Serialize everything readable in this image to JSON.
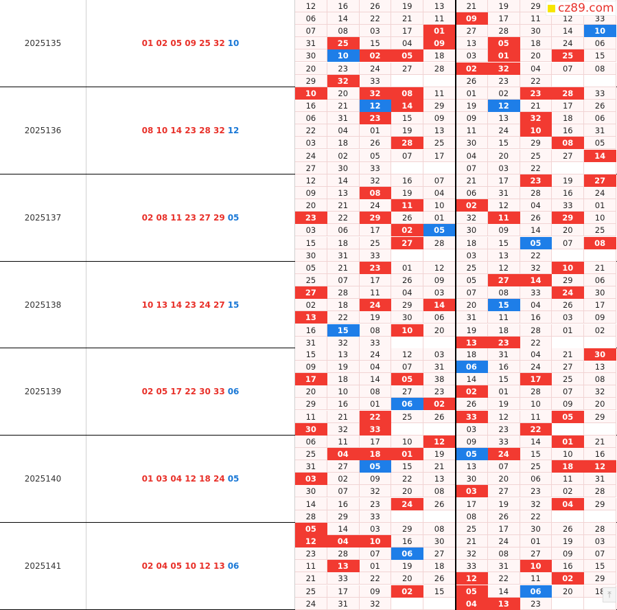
{
  "brand": {
    "logo_text": "cz89.com"
  },
  "scroll_top_glyph": "⤒",
  "rows": [
    {
      "issue": "2025135",
      "red": "01 02 05 09 25 32",
      "blue": "10",
      "left": [
        [
          "12",
          "16",
          "26",
          "19",
          "13"
        ],
        [
          "06",
          "14",
          "22",
          "21",
          "11"
        ],
        [
          "07",
          "08",
          "03",
          "17",
          "01"
        ],
        [
          "31",
          "25",
          "15",
          "04",
          "09"
        ],
        [
          "30",
          "10",
          "02",
          "05",
          "18"
        ],
        [
          "20",
          "23",
          "24",
          "27",
          "28"
        ],
        [
          "29",
          "32",
          "33",
          "",
          ""
        ]
      ],
      "right": [
        [
          "21",
          "19",
          "29",
          "",
          ""
        ],
        [
          "09",
          "17",
          "11",
          "12",
          "33"
        ],
        [
          "27",
          "28",
          "30",
          "14",
          "10"
        ],
        [
          "13",
          "05",
          "18",
          "24",
          "06"
        ],
        [
          "03",
          "01",
          "20",
          "25",
          "15"
        ],
        [
          "02",
          "32",
          "04",
          "07",
          "08"
        ],
        [
          "26",
          "23",
          "22",
          "",
          ""
        ]
      ]
    },
    {
      "issue": "2025136",
      "red": "08 10 14 23 28 32",
      "blue": "12",
      "left": [
        [
          "10",
          "20",
          "32",
          "08",
          "11"
        ],
        [
          "16",
          "21",
          "12",
          "14",
          "29"
        ],
        [
          "06",
          "31",
          "23",
          "15",
          "09"
        ],
        [
          "22",
          "04",
          "01",
          "19",
          "13"
        ],
        [
          "03",
          "18",
          "26",
          "28",
          "25"
        ],
        [
          "24",
          "02",
          "05",
          "07",
          "17"
        ],
        [
          "27",
          "30",
          "33",
          "",
          ""
        ]
      ],
      "right": [
        [
          "01",
          "02",
          "23",
          "28",
          "33"
        ],
        [
          "19",
          "12",
          "21",
          "17",
          "26"
        ],
        [
          "09",
          "13",
          "32",
          "18",
          "06"
        ],
        [
          "11",
          "24",
          "10",
          "16",
          "31"
        ],
        [
          "30",
          "15",
          "29",
          "08",
          "05"
        ],
        [
          "04",
          "20",
          "25",
          "27",
          "14"
        ],
        [
          "07",
          "03",
          "22",
          "",
          ""
        ]
      ]
    },
    {
      "issue": "2025137",
      "red": "02 08 11 23 27 29",
      "blue": "05",
      "left": [
        [
          "12",
          "14",
          "32",
          "16",
          "07"
        ],
        [
          "09",
          "13",
          "08",
          "19",
          "04"
        ],
        [
          "20",
          "21",
          "24",
          "11",
          "10"
        ],
        [
          "23",
          "22",
          "29",
          "26",
          "01"
        ],
        [
          "03",
          "06",
          "17",
          "02",
          "05"
        ],
        [
          "15",
          "18",
          "25",
          "27",
          "28"
        ],
        [
          "30",
          "31",
          "33",
          "",
          ""
        ]
      ],
      "right": [
        [
          "21",
          "17",
          "23",
          "19",
          "27"
        ],
        [
          "06",
          "31",
          "28",
          "16",
          "24"
        ],
        [
          "02",
          "12",
          "04",
          "33",
          "01"
        ],
        [
          "32",
          "11",
          "26",
          "29",
          "10"
        ],
        [
          "30",
          "09",
          "14",
          "20",
          "25"
        ],
        [
          "18",
          "15",
          "05",
          "07",
          "08"
        ],
        [
          "03",
          "13",
          "22",
          "",
          ""
        ]
      ]
    },
    {
      "issue": "2025138",
      "red": "10 13 14 23 24 27",
      "blue": "15",
      "left": [
        [
          "05",
          "21",
          "23",
          "01",
          "12"
        ],
        [
          "25",
          "07",
          "17",
          "26",
          "09"
        ],
        [
          "27",
          "28",
          "11",
          "04",
          "03"
        ],
        [
          "02",
          "18",
          "24",
          "29",
          "14"
        ],
        [
          "13",
          "22",
          "19",
          "30",
          "06"
        ],
        [
          "16",
          "15",
          "08",
          "10",
          "20"
        ],
        [
          "31",
          "32",
          "33",
          "",
          ""
        ]
      ],
      "right": [
        [
          "25",
          "12",
          "32",
          "10",
          "21"
        ],
        [
          "05",
          "27",
          "14",
          "29",
          "06"
        ],
        [
          "07",
          "08",
          "33",
          "24",
          "30"
        ],
        [
          "20",
          "15",
          "04",
          "26",
          "17"
        ],
        [
          "31",
          "11",
          "16",
          "03",
          "09"
        ],
        [
          "19",
          "18",
          "28",
          "01",
          "02"
        ],
        [
          "13",
          "23",
          "22",
          "",
          ""
        ]
      ]
    },
    {
      "issue": "2025139",
      "red": "02 05 17 22 30 33",
      "blue": "06",
      "left": [
        [
          "15",
          "13",
          "24",
          "12",
          "03"
        ],
        [
          "09",
          "19",
          "04",
          "07",
          "31"
        ],
        [
          "17",
          "18",
          "14",
          "05",
          "38"
        ],
        [
          "20",
          "10",
          "08",
          "27",
          "23"
        ],
        [
          "29",
          "16",
          "01",
          "06",
          "02"
        ],
        [
          "11",
          "21",
          "22",
          "25",
          "26"
        ],
        [
          "30",
          "32",
          "33",
          "",
          ""
        ]
      ],
      "right": [
        [
          "18",
          "31",
          "04",
          "21",
          "30"
        ],
        [
          "06",
          "16",
          "24",
          "27",
          "13"
        ],
        [
          "14",
          "15",
          "17",
          "25",
          "08"
        ],
        [
          "02",
          "01",
          "28",
          "07",
          "32"
        ],
        [
          "26",
          "19",
          "10",
          "09",
          "20"
        ],
        [
          "33",
          "12",
          "11",
          "05",
          "29"
        ],
        [
          "03",
          "23",
          "22",
          "",
          ""
        ]
      ]
    },
    {
      "issue": "2025140",
      "red": "01 03 04 12 18 24",
      "blue": "05",
      "left": [
        [
          "06",
          "11",
          "17",
          "10",
          "12"
        ],
        [
          "25",
          "04",
          "18",
          "01",
          "19"
        ],
        [
          "31",
          "27",
          "05",
          "15",
          "21"
        ],
        [
          "03",
          "02",
          "09",
          "22",
          "13"
        ],
        [
          "30",
          "07",
          "32",
          "20",
          "08"
        ],
        [
          "14",
          "16",
          "23",
          "24",
          "26"
        ],
        [
          "28",
          "29",
          "33",
          "",
          ""
        ]
      ],
      "right": [
        [
          "09",
          "33",
          "14",
          "01",
          "21"
        ],
        [
          "05",
          "24",
          "15",
          "10",
          "16"
        ],
        [
          "13",
          "07",
          "25",
          "18",
          "12"
        ],
        [
          "30",
          "20",
          "06",
          "11",
          "31"
        ],
        [
          "03",
          "27",
          "23",
          "02",
          "28"
        ],
        [
          "17",
          "19",
          "32",
          "04",
          "29"
        ],
        [
          "08",
          "26",
          "22",
          "",
          ""
        ]
      ]
    },
    {
      "issue": "2025141",
      "red": "02 04 05 10 12 13",
      "blue": "06",
      "left": [
        [
          "05",
          "14",
          "03",
          "29",
          "08"
        ],
        [
          "12",
          "04",
          "10",
          "16",
          "30"
        ],
        [
          "23",
          "28",
          "07",
          "06",
          "27"
        ],
        [
          "11",
          "13",
          "01",
          "19",
          "18"
        ],
        [
          "21",
          "33",
          "22",
          "20",
          "26"
        ],
        [
          "25",
          "17",
          "09",
          "02",
          "15"
        ],
        [
          "24",
          "31",
          "32",
          "",
          ""
        ]
      ],
      "right": [
        [
          "25",
          "17",
          "30",
          "26",
          "28"
        ],
        [
          "21",
          "24",
          "01",
          "19",
          "03"
        ],
        [
          "32",
          "08",
          "27",
          "09",
          "07"
        ],
        [
          "33",
          "31",
          "10",
          "16",
          "15"
        ],
        [
          "12",
          "22",
          "11",
          "02",
          "29"
        ],
        [
          "05",
          "14",
          "06",
          "20",
          "18"
        ],
        [
          "04",
          "13",
          "23",
          "",
          ""
        ]
      ]
    }
  ],
  "colors": {
    "red": "#f23a31",
    "blue": "#1e7ee8"
  }
}
